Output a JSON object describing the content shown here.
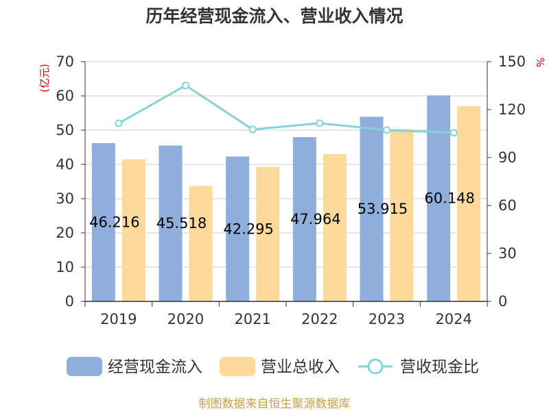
{
  "title": "历年经营现金流入、营业收入情况",
  "source_note": "制图数据来自恒生聚源数据库",
  "colors": {
    "series1": "#8eaedb",
    "series2": "#fdd99b",
    "line": "#84d3d6"
  },
  "chart_data": {
    "type": "bar",
    "title": "历年经营现金流入、营业收入情况",
    "categories": [
      "2019",
      "2020",
      "2021",
      "2022",
      "2023",
      "2024"
    ],
    "y_left": {
      "label": "(亿元)",
      "ylim": [
        0,
        70
      ],
      "ticks": [
        0,
        10,
        20,
        30,
        40,
        50,
        60,
        70
      ]
    },
    "y_right": {
      "label": "%",
      "ylim": [
        0,
        150
      ],
      "ticks": [
        0,
        30,
        60,
        90,
        120,
        150
      ]
    },
    "grid": true,
    "legend_position": "bottom",
    "series": [
      {
        "name": "经营现金流入",
        "type": "bar",
        "axis": "left",
        "values": [
          46.216,
          45.518,
          42.295,
          47.964,
          53.915,
          60.148
        ],
        "labels": [
          "46.216",
          "45.518",
          "42.295",
          "47.964",
          "53.915",
          "60.148"
        ]
      },
      {
        "name": "营业总收入",
        "type": "bar",
        "axis": "left",
        "values": [
          41.5,
          33.7,
          39.3,
          43.0,
          50.3,
          57.0
        ]
      },
      {
        "name": "营收现金比",
        "type": "line",
        "axis": "right",
        "values": [
          111.4,
          135.1,
          107.6,
          111.5,
          107.2,
          105.5
        ]
      }
    ]
  }
}
